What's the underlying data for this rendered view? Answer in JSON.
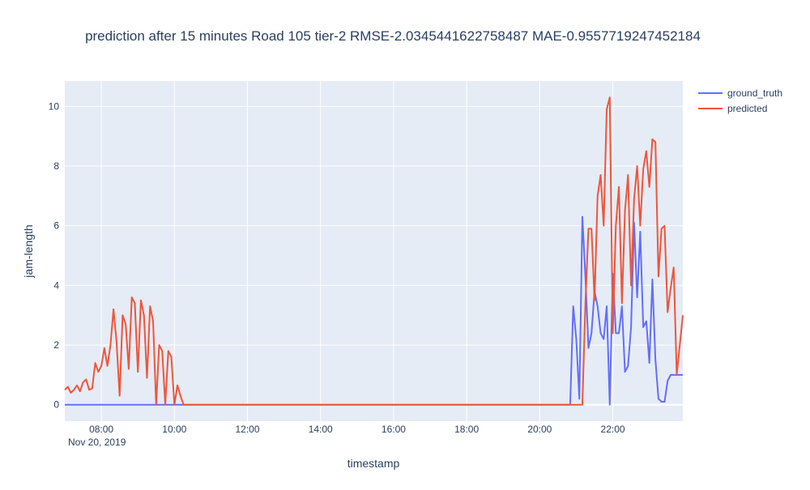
{
  "chart_data": {
    "type": "line",
    "title": "prediction after 15 minutes Road 105 tier-2 RMSE-2.0345441622758487  MAE-0.9557719247452184",
    "xlabel": "timestamp",
    "ylabel": "jam-length",
    "xlim": [
      "2019-11-20 07:00",
      "2019-11-20 23:55"
    ],
    "ylim": [
      -0.55,
      10.85
    ],
    "x_tick_labels": [
      "08:00",
      "10:00",
      "12:00",
      "14:00",
      "16:00",
      "18:00",
      "20:00",
      "22:00"
    ],
    "x_tick_times": [
      "08:00",
      "10:00",
      "12:00",
      "14:00",
      "16:00",
      "18:00",
      "20:00",
      "22:00"
    ],
    "x_date_label": "Nov 20, 2019",
    "y_ticks": [
      0,
      2,
      4,
      6,
      8,
      10
    ],
    "grid": true,
    "legend_position": "top-right",
    "background": "#e5ecf6",
    "series": [
      {
        "name": "ground_truth",
        "color": "#636efa",
        "points": [
          [
            "07:00",
            0
          ],
          [
            "09:30",
            0
          ],
          [
            "10:00",
            0
          ],
          [
            "12:00",
            0
          ],
          [
            "14:00",
            0
          ],
          [
            "16:00",
            0
          ],
          [
            "18:00",
            0
          ],
          [
            "20:00",
            0
          ],
          [
            "20:50",
            0
          ],
          [
            "20:55",
            3.3
          ],
          [
            "21:00",
            2.2
          ],
          [
            "21:05",
            0.2
          ],
          [
            "21:10",
            6.3
          ],
          [
            "21:15",
            4.3
          ],
          [
            "21:20",
            1.9
          ],
          [
            "21:25",
            2.4
          ],
          [
            "21:30",
            3.8
          ],
          [
            "21:35",
            3.3
          ],
          [
            "21:40",
            2.4
          ],
          [
            "21:45",
            2.2
          ],
          [
            "21:50",
            3.3
          ],
          [
            "21:55",
            0.0
          ],
          [
            "22:00",
            4.4
          ],
          [
            "22:05",
            2.4
          ],
          [
            "22:10",
            2.4
          ],
          [
            "22:15",
            3.3
          ],
          [
            "22:20",
            1.1
          ],
          [
            "22:25",
            1.3
          ],
          [
            "22:30",
            2.6
          ],
          [
            "22:35",
            6.1
          ],
          [
            "22:40",
            3.6
          ],
          [
            "22:45",
            5.8
          ],
          [
            "22:50",
            2.6
          ],
          [
            "22:55",
            2.8
          ],
          [
            "23:00",
            1.4
          ],
          [
            "23:05",
            4.2
          ],
          [
            "23:10",
            1.5
          ],
          [
            "23:15",
            0.2
          ],
          [
            "23:20",
            0.1
          ],
          [
            "23:25",
            0.1
          ],
          [
            "23:30",
            0.8
          ],
          [
            "23:35",
            1.0
          ],
          [
            "23:40",
            1.0
          ],
          [
            "23:45",
            1.0
          ],
          [
            "23:50",
            1.0
          ],
          [
            "23:55",
            1.0
          ]
        ]
      },
      {
        "name": "predicted",
        "color": "#ef553b",
        "points": [
          [
            "07:00",
            0.5
          ],
          [
            "07:05",
            0.6
          ],
          [
            "07:10",
            0.4
          ],
          [
            "07:15",
            0.5
          ],
          [
            "07:20",
            0.65
          ],
          [
            "07:25",
            0.45
          ],
          [
            "07:30",
            0.75
          ],
          [
            "07:35",
            0.85
          ],
          [
            "07:40",
            0.5
          ],
          [
            "07:45",
            0.55
          ],
          [
            "07:50",
            1.4
          ],
          [
            "07:55",
            1.1
          ],
          [
            "08:00",
            1.3
          ],
          [
            "08:05",
            1.9
          ],
          [
            "08:10",
            1.3
          ],
          [
            "08:15",
            2.0
          ],
          [
            "08:20",
            3.2
          ],
          [
            "08:25",
            2.1
          ],
          [
            "08:30",
            0.3
          ],
          [
            "08:35",
            3.0
          ],
          [
            "08:40",
            2.7
          ],
          [
            "08:45",
            1.2
          ],
          [
            "08:50",
            3.6
          ],
          [
            "08:55",
            3.4
          ],
          [
            "09:00",
            1.1
          ],
          [
            "09:05",
            3.5
          ],
          [
            "09:10",
            3.0
          ],
          [
            "09:15",
            0.9
          ],
          [
            "09:20",
            3.3
          ],
          [
            "09:25",
            2.8
          ],
          [
            "09:30",
            0.0
          ],
          [
            "09:35",
            2.0
          ],
          [
            "09:40",
            1.8
          ],
          [
            "09:45",
            0.0
          ],
          [
            "09:50",
            1.8
          ],
          [
            "09:55",
            1.6
          ],
          [
            "10:00",
            0.0
          ],
          [
            "10:05",
            0.65
          ],
          [
            "10:10",
            0.3
          ],
          [
            "10:15",
            0.0
          ],
          [
            "12:00",
            0.0
          ],
          [
            "14:00",
            0.0
          ],
          [
            "16:00",
            0.0
          ],
          [
            "18:00",
            0.0
          ],
          [
            "20:00",
            0.0
          ],
          [
            "21:10",
            0.0
          ],
          [
            "21:15",
            3.4
          ],
          [
            "21:20",
            5.9
          ],
          [
            "21:25",
            5.9
          ],
          [
            "21:30",
            3.5
          ],
          [
            "21:35",
            7.0
          ],
          [
            "21:40",
            7.7
          ],
          [
            "21:45",
            6.0
          ],
          [
            "21:50",
            9.9
          ],
          [
            "21:55",
            10.3
          ],
          [
            "22:00",
            2.4
          ],
          [
            "22:05",
            6.0
          ],
          [
            "22:10",
            7.3
          ],
          [
            "22:15",
            3.4
          ],
          [
            "22:20",
            6.5
          ],
          [
            "22:25",
            7.7
          ],
          [
            "22:30",
            4.0
          ],
          [
            "22:35",
            6.9
          ],
          [
            "22:40",
            8.0
          ],
          [
            "22:45",
            6.0
          ],
          [
            "22:50",
            7.9
          ],
          [
            "22:55",
            8.5
          ],
          [
            "23:00",
            7.3
          ],
          [
            "23:05",
            8.9
          ],
          [
            "23:10",
            8.8
          ],
          [
            "23:15",
            4.3
          ],
          [
            "23:20",
            5.9
          ],
          [
            "23:25",
            6.0
          ],
          [
            "23:30",
            3.1
          ],
          [
            "23:35",
            3.9
          ],
          [
            "23:40",
            4.6
          ],
          [
            "23:45",
            1.0
          ],
          [
            "23:50",
            2.0
          ],
          [
            "23:55",
            3.0
          ]
        ]
      }
    ]
  }
}
